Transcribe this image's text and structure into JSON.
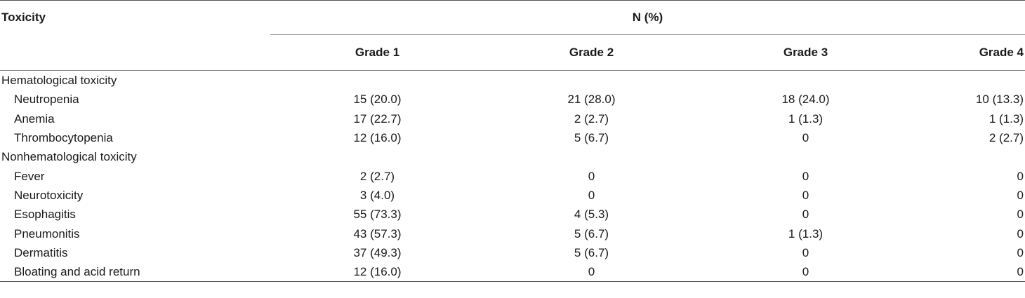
{
  "table": {
    "header": {
      "row_label": "Toxicity",
      "group_label": "N (%)",
      "columns": [
        "Grade 1",
        "Grade 2",
        "Grade 3",
        "Grade 4"
      ]
    },
    "sections": [
      {
        "title": "Hematological toxicity",
        "rows": [
          {
            "label": "Neutropenia",
            "values": [
              "15 (20.0)",
              "21 (28.0)",
              "18 (24.0)",
              "10 (13.3)"
            ]
          },
          {
            "label": "Anemia",
            "values": [
              "17 (22.7)",
              "2 (2.7)",
              "1 (1.3)",
              "1 (1.3)"
            ]
          },
          {
            "label": "Thrombocytopenia",
            "values": [
              "12 (16.0)",
              "5 (6.7)",
              "0",
              "2 (2.7)"
            ]
          }
        ]
      },
      {
        "title": "Nonhematological toxicity",
        "rows": [
          {
            "label": "Fever",
            "values": [
              "2 (2.7)",
              "0",
              "0",
              "0"
            ]
          },
          {
            "label": "Neurotoxicity",
            "values": [
              "3 (4.0)",
              "0",
              "0",
              "0"
            ]
          },
          {
            "label": "Esophagitis",
            "values": [
              "55 (73.3)",
              "4 (5.3)",
              "0",
              "0"
            ]
          },
          {
            "label": "Pneumonitis",
            "values": [
              "43 (57.3)",
              "5 (6.7)",
              "1 (1.3)",
              "0"
            ]
          },
          {
            "label": "Dermatitis",
            "values": [
              "37 (49.3)",
              "5 (6.7)",
              "0",
              "0"
            ]
          },
          {
            "label": "Bloating and acid return",
            "values": [
              "12 (16.0)",
              "0",
              "0",
              "0"
            ]
          }
        ]
      }
    ]
  }
}
